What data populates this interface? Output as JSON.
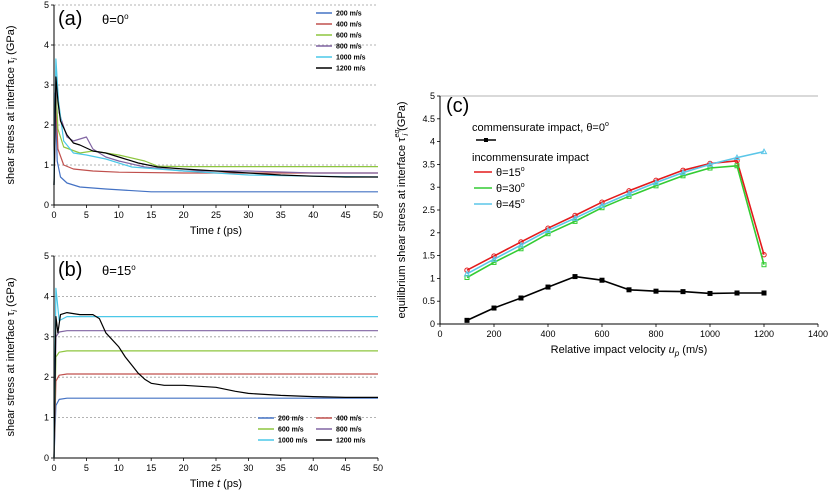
{
  "chart_data": [
    {
      "id": "a",
      "type": "line",
      "panel_label": "(a)",
      "annotation": "θ=0",
      "annotation_sup": "o",
      "xlabel": "Time",
      "xlabel_var": "t",
      "xlabel_unit": "(ps)",
      "ylabel": "shear stress at interface",
      "ylabel_var": "τ",
      "ylabel_sub": "i",
      "ylabel_unit": "(GPa)",
      "xlim": [
        0,
        50
      ],
      "ylim": [
        0,
        5
      ],
      "xticks": [
        "0",
        "5",
        "10",
        "15",
        "20",
        "25",
        "30",
        "35",
        "40",
        "45",
        "50"
      ],
      "yticks": [
        "0",
        "1",
        "2",
        "3",
        "4",
        "5"
      ],
      "legend_position": "top-right",
      "series": [
        {
          "name": "200 m/s",
          "color": "#4472c4",
          "x": [
            0,
            0.2,
            0.5,
            1,
            2,
            4,
            8,
            15,
            25,
            35,
            50
          ],
          "y": [
            0.5,
            2.8,
            1.1,
            0.7,
            0.55,
            0.45,
            0.4,
            0.33,
            0.33,
            0.33,
            0.33
          ]
        },
        {
          "name": "400 m/s",
          "color": "#c0504d",
          "x": [
            0,
            0.3,
            0.6,
            1.5,
            3,
            6,
            10,
            20,
            30,
            40,
            50
          ],
          "y": [
            0.5,
            2.6,
            1.4,
            1.0,
            0.9,
            0.85,
            0.82,
            0.8,
            0.8,
            0.8,
            0.8
          ]
        },
        {
          "name": "600 m/s",
          "color": "#8ec63f",
          "x": [
            0,
            0.3,
            0.6,
            1.5,
            4,
            6,
            10,
            14,
            16,
            20,
            30,
            40,
            50
          ],
          "y": [
            0.5,
            3.0,
            1.9,
            1.45,
            1.3,
            1.35,
            1.25,
            1.1,
            0.97,
            0.96,
            0.96,
            0.96,
            0.96
          ]
        },
        {
          "name": "800 m/s",
          "color": "#8064a2",
          "x": [
            0,
            0.4,
            0.8,
            2,
            3,
            5,
            6,
            8,
            10,
            14,
            20,
            30,
            40,
            50
          ],
          "y": [
            0.5,
            3.2,
            2.3,
            1.7,
            1.6,
            1.7,
            1.4,
            1.2,
            1.1,
            0.95,
            0.85,
            0.85,
            0.8,
            0.8
          ]
        },
        {
          "name": "1000 m/s",
          "color": "#4bc8e8",
          "x": [
            0,
            0.3,
            0.7,
            1.5,
            3,
            5,
            8,
            12,
            20,
            30,
            40,
            50
          ],
          "y": [
            0.5,
            3.65,
            2.6,
            1.6,
            1.3,
            1.25,
            1.15,
            0.95,
            0.85,
            0.75,
            0.72,
            0.7
          ]
        },
        {
          "name": "1200 m/s",
          "color": "#000000",
          "x": [
            0,
            0.3,
            0.6,
            1,
            2,
            3,
            4,
            6,
            8,
            10,
            13,
            16,
            20,
            25,
            30,
            35,
            40,
            45,
            50
          ],
          "y": [
            0.5,
            3.2,
            2.6,
            2.1,
            1.75,
            1.55,
            1.5,
            1.35,
            1.3,
            1.2,
            1.05,
            0.95,
            0.9,
            0.85,
            0.8,
            0.75,
            0.72,
            0.7,
            0.7
          ]
        }
      ]
    },
    {
      "id": "b",
      "type": "line",
      "panel_label": "(b)",
      "annotation": "θ=15",
      "annotation_sup": "o",
      "xlabel": "Time",
      "xlabel_var": "t",
      "xlabel_unit": "(ps)",
      "ylabel": "shear stress at interface",
      "ylabel_var": "τ",
      "ylabel_sub": "i",
      "ylabel_unit": "(GPa)",
      "xlim": [
        0,
        50
      ],
      "ylim": [
        0,
        5
      ],
      "xticks": [
        "0",
        "5",
        "10",
        "15",
        "20",
        "25",
        "30",
        "35",
        "40",
        "45",
        "50"
      ],
      "yticks": [
        "0",
        "1",
        "2",
        "3",
        "4",
        "5"
      ],
      "legend_position": "bottom-right",
      "series": [
        {
          "name": "200 m/s",
          "color": "#4472c4",
          "x": [
            0,
            0.3,
            0.8,
            2,
            50
          ],
          "y": [
            0,
            1.3,
            1.45,
            1.48,
            1.48
          ]
        },
        {
          "name": "400 m/s",
          "color": "#c0504d",
          "x": [
            0,
            0.3,
            0.8,
            2,
            50
          ],
          "y": [
            0,
            1.9,
            2.05,
            2.08,
            2.08
          ]
        },
        {
          "name": "600 m/s",
          "color": "#8ec63f",
          "x": [
            0,
            0.3,
            0.8,
            2,
            50
          ],
          "y": [
            0,
            2.5,
            2.62,
            2.65,
            2.65
          ]
        },
        {
          "name": "800 m/s",
          "color": "#8064a2",
          "x": [
            0,
            0.3,
            0.8,
            2,
            50
          ],
          "y": [
            0,
            3.0,
            3.12,
            3.15,
            3.15
          ]
        },
        {
          "name": "1000 m/s",
          "color": "#4bc8e8",
          "x": [
            0,
            0.3,
            0.8,
            2,
            50
          ],
          "y": [
            0,
            4.2,
            3.4,
            3.5,
            3.5
          ]
        },
        {
          "name": "1200 m/s",
          "color": "#000000",
          "x": [
            0,
            0.3,
            0.6,
            1,
            2,
            4,
            6,
            7,
            8,
            10,
            11,
            12,
            13,
            14,
            15,
            17,
            20,
            25,
            28,
            30,
            35,
            40,
            45,
            50
          ],
          "y": [
            0,
            3.5,
            3.1,
            3.55,
            3.6,
            3.55,
            3.55,
            3.45,
            3.1,
            2.75,
            2.5,
            2.3,
            2.1,
            1.95,
            1.85,
            1.8,
            1.8,
            1.75,
            1.65,
            1.6,
            1.55,
            1.52,
            1.5,
            1.5
          ]
        }
      ]
    },
    {
      "id": "c",
      "type": "line",
      "panel_label": "(c)",
      "xlabel": "Relative impact velocity",
      "xlabel_var": "u",
      "xlabel_sub": "p",
      "xlabel_unit": "(m/s)",
      "ylabel": "equilibrium shear stress at interface",
      "ylabel_var": "τ",
      "ylabel_sub": "i",
      "ylabel_sup": "eq",
      "ylabel_unit": "(GPa)",
      "xlim": [
        0,
        1400
      ],
      "ylim": [
        0,
        5
      ],
      "xticks": [
        "0",
        "200",
        "400",
        "600",
        "800",
        "1000",
        "1200",
        "1400"
      ],
      "yticks": [
        "0",
        "0.5",
        "1",
        "1.5",
        "2",
        "2.5",
        "3",
        "3.5",
        "4",
        "4.5",
        "5"
      ],
      "legend_position": "top-left",
      "legend_header_1": "commensurate impact, θ=0",
      "legend_header_1_sup": "o",
      "legend_header_2": "incommensurate impact",
      "series": [
        {
          "name": "θ=0",
          "name_sup": "o",
          "color": "#000000",
          "marker": "square",
          "x": [
            100,
            200,
            300,
            400,
            500,
            600,
            700,
            800,
            900,
            1000,
            1100,
            1200
          ],
          "y": [
            0.08,
            0.35,
            0.57,
            0.81,
            1.04,
            0.96,
            0.75,
            0.72,
            0.71,
            0.67,
            0.68,
            0.68
          ]
        },
        {
          "name": "θ=15",
          "name_sup": "o",
          "color": "#e31a1c",
          "marker": "circle",
          "x": [
            100,
            200,
            300,
            400,
            500,
            600,
            700,
            800,
            900,
            1000,
            1100,
            1200
          ],
          "y": [
            1.18,
            1.49,
            1.8,
            2.1,
            2.38,
            2.67,
            2.92,
            3.15,
            3.37,
            3.52,
            3.58,
            1.52
          ]
        },
        {
          "name": "θ=30",
          "name_sup": "o",
          "color": "#33cc33",
          "marker": "square",
          "x": [
            100,
            200,
            300,
            400,
            500,
            600,
            700,
            800,
            900,
            1000,
            1100,
            1200
          ],
          "y": [
            1.02,
            1.35,
            1.65,
            1.98,
            2.25,
            2.55,
            2.8,
            3.03,
            3.25,
            3.42,
            3.47,
            1.3
          ]
        },
        {
          "name": "θ=45",
          "name_sup": "o",
          "color": "#5bc6e8",
          "marker": "triangle",
          "x": [
            100,
            200,
            300,
            400,
            500,
            600,
            700,
            800,
            900,
            1000,
            1100,
            1200
          ],
          "y": [
            1.1,
            1.42,
            1.73,
            2.05,
            2.32,
            2.6,
            2.86,
            3.1,
            3.32,
            3.5,
            3.65,
            3.78
          ]
        }
      ]
    }
  ]
}
